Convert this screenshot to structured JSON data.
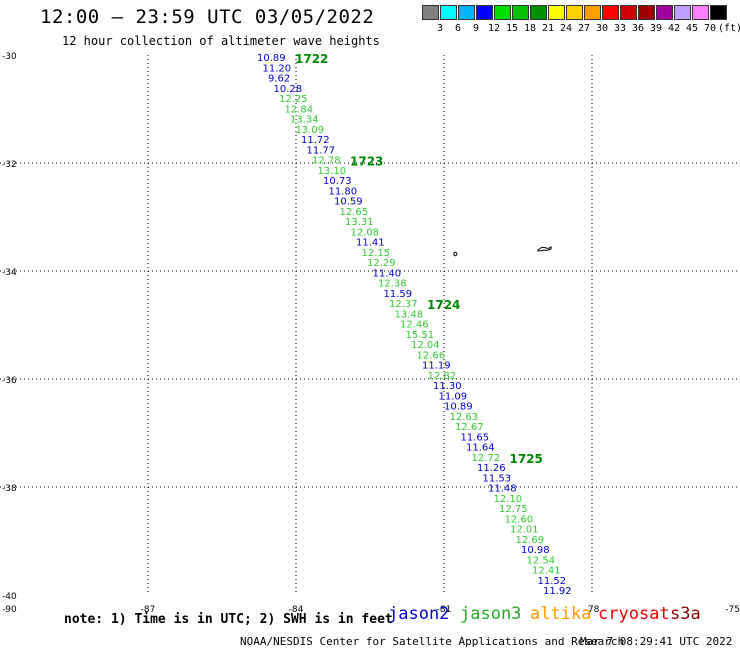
{
  "header": {
    "title": "12:00 — 23:59 UTC 03/05/2022",
    "subtitle": "12 hour collection of altimeter wave heights"
  },
  "colorbar": {
    "colors": [
      "#808080",
      "#00ffff",
      "#00b4ff",
      "#0000ff",
      "#00dd00",
      "#00c000",
      "#009000",
      "#ffff00",
      "#ffd000",
      "#ffa000",
      "#ff0000",
      "#d00000",
      "#a00000",
      "#a000a0",
      "#c0a0ff",
      "#ff80ff",
      "#000000"
    ],
    "labels": [
      "3",
      "6",
      "9",
      "12",
      "15",
      "18",
      "21",
      "24",
      "27",
      "30",
      "33",
      "36",
      "39",
      "42",
      "45",
      "70",
      "(ft)"
    ]
  },
  "map": {
    "lon_range": [
      -90,
      -75
    ],
    "lat_range": [
      -40,
      -30
    ],
    "lon_ticks": [
      "-90",
      "-87",
      "-84",
      "-81",
      "-78",
      "-75"
    ],
    "lat_ticks": [
      "-30",
      "-32",
      "-34",
      "-36",
      "-38",
      "-40"
    ],
    "colors": {
      "jason2": "#0000cc",
      "jason3": "#33cc33",
      "pass": "#008800"
    },
    "observations": [
      {
        "v": "10.89",
        "s": "jason2"
      },
      {
        "v": "11.20",
        "s": "jason2"
      },
      {
        "v": "9.62",
        "s": "jason2"
      },
      {
        "v": "10.28",
        "s": "jason2"
      },
      {
        "v": "12.25",
        "s": "jason3"
      },
      {
        "v": "12.84",
        "s": "jason3"
      },
      {
        "v": "13.34",
        "s": "jason3"
      },
      {
        "v": "13.09",
        "s": "jason3"
      },
      {
        "v": "11.72",
        "s": "jason2"
      },
      {
        "v": "11.77",
        "s": "jason2"
      },
      {
        "v": "12.78",
        "s": "jason3"
      },
      {
        "v": "13.10",
        "s": "jason3"
      },
      {
        "v": "10.73",
        "s": "jason2"
      },
      {
        "v": "11.80",
        "s": "jason2"
      },
      {
        "v": "10.59",
        "s": "jason2"
      },
      {
        "v": "12.65",
        "s": "jason3"
      },
      {
        "v": "13.31",
        "s": "jason3"
      },
      {
        "v": "12.08",
        "s": "jason3"
      },
      {
        "v": "11.41",
        "s": "jason2"
      },
      {
        "v": "12.15",
        "s": "jason3"
      },
      {
        "v": "12.29",
        "s": "jason3"
      },
      {
        "v": "11.40",
        "s": "jason2"
      },
      {
        "v": "12.38",
        "s": "jason3"
      },
      {
        "v": "11.59",
        "s": "jason2"
      },
      {
        "v": "12.37",
        "s": "jason3"
      },
      {
        "v": "13.48",
        "s": "jason3"
      },
      {
        "v": "12.46",
        "s": "jason3"
      },
      {
        "v": "15.51",
        "s": "jason3"
      },
      {
        "v": "12.04",
        "s": "jason3"
      },
      {
        "v": "12.66",
        "s": "jason3"
      },
      {
        "v": "11.19",
        "s": "jason2"
      },
      {
        "v": "12.82",
        "s": "jason3"
      },
      {
        "v": "11.30",
        "s": "jason2"
      },
      {
        "v": "11.09",
        "s": "jason2"
      },
      {
        "v": "10.89",
        "s": "jason2"
      },
      {
        "v": "12.63",
        "s": "jason3"
      },
      {
        "v": "12.67",
        "s": "jason3"
      },
      {
        "v": "11.65",
        "s": "jason2"
      },
      {
        "v": "11.64",
        "s": "jason2"
      },
      {
        "v": "12.72",
        "s": "jason3"
      },
      {
        "v": "11.26",
        "s": "jason2"
      },
      {
        "v": "11.53",
        "s": "jason2"
      },
      {
        "v": "11.48",
        "s": "jason2"
      },
      {
        "v": "12.10",
        "s": "jason3"
      },
      {
        "v": "12.75",
        "s": "jason3"
      },
      {
        "v": "12.60",
        "s": "jason3"
      },
      {
        "v": "12.01",
        "s": "jason3"
      },
      {
        "v": "12.69",
        "s": "jason3"
      },
      {
        "v": "10.98",
        "s": "jason2"
      },
      {
        "v": "12.54",
        "s": "jason3"
      },
      {
        "v": "12.41",
        "s": "jason3"
      },
      {
        "v": "11.52",
        "s": "jason2"
      },
      {
        "v": "11.92",
        "s": "jason2"
      }
    ],
    "pass_labels": [
      {
        "text": "1722",
        "obs": 0
      },
      {
        "text": "1723",
        "obs": 10
      },
      {
        "text": "1724",
        "obs": 24
      },
      {
        "text": "1725",
        "obs": 39
      }
    ]
  },
  "footer": {
    "note": "note: 1) Time is in UTC; 2) SWH is in feet",
    "legend": [
      {
        "name": "jason2",
        "color": "#0000dd"
      },
      {
        "name": "jason3",
        "color": "#22aa22"
      },
      {
        "name": "altika",
        "color": "#ff9900"
      },
      {
        "name": "cryosat",
        "color": "#ee0000"
      },
      {
        "name": "s3a",
        "color": "#880000"
      }
    ],
    "credit": "NOAA/NESDIS Center for Satellite Applications and Research",
    "timestamp": "Mar  7 08:29:41 UTC 2022"
  }
}
